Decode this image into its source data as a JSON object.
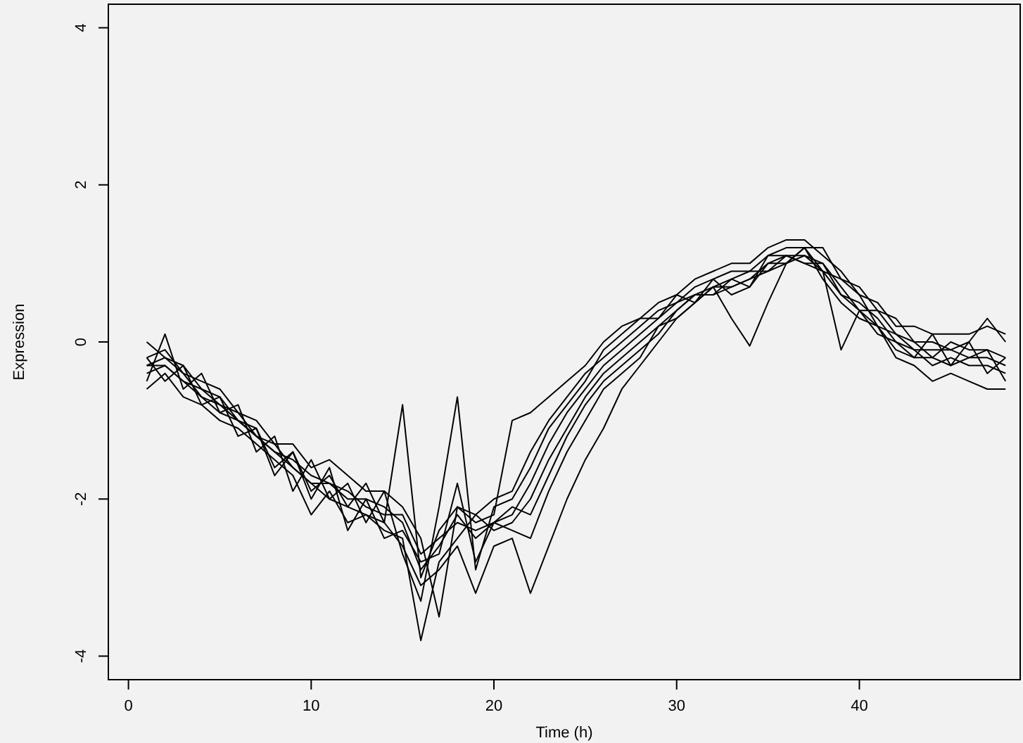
{
  "chart_data": {
    "type": "line",
    "xlabel": "Time (h)",
    "ylabel": "Expression",
    "x": [
      1,
      2,
      3,
      4,
      5,
      6,
      7,
      8,
      9,
      10,
      11,
      12,
      13,
      14,
      15,
      16,
      17,
      18,
      19,
      20,
      21,
      22,
      23,
      24,
      25,
      26,
      27,
      28,
      29,
      30,
      31,
      32,
      33,
      34,
      35,
      36,
      37,
      38,
      39,
      40,
      41,
      42,
      43,
      44,
      45,
      46,
      47,
      48
    ],
    "xlim": [
      -1.1,
      48.8
    ],
    "ylim": [
      -4.3,
      4.3
    ],
    "xticks": [
      0,
      10,
      20,
      30,
      40
    ],
    "yticks": [
      -4,
      -2,
      0,
      2,
      4
    ],
    "grid": false,
    "marker": "none",
    "line_style": "solid",
    "series": [
      {
        "color": "#000000",
        "values": [
          -0.3,
          -0.3,
          -0.5,
          -0.6,
          -0.8,
          -0.9,
          -1.2,
          -1.4,
          -1.5,
          -1.7,
          -1.8,
          -2.0,
          -2.0,
          -2.1,
          -2.3,
          -2.9,
          -2.6,
          -2.2,
          -2.5,
          -2.3,
          -2.2,
          -1.8,
          -1.3,
          -0.9,
          -0.6,
          -0.3,
          -0.1,
          0.1,
          0.3,
          0.5,
          0.6,
          0.7,
          0.7,
          0.8,
          1.0,
          1.1,
          1.1,
          1.0,
          0.6,
          0.5,
          0.3,
          0.0,
          -0.1,
          -0.1,
          -0.1,
          -0.2,
          -0.2,
          -0.3
        ]
      },
      {
        "color": "#000000",
        "values": [
          0.0,
          -0.2,
          -0.3,
          -0.6,
          -0.7,
          -1.0,
          -1.1,
          -1.6,
          -1.4,
          -1.9,
          -1.7,
          -2.1,
          -1.8,
          -2.3,
          -0.8,
          -3.0,
          -2.4,
          -2.1,
          -2.2,
          -2.0,
          -1.9,
          -1.4,
          -1.0,
          -0.7,
          -0.4,
          -0.2,
          0.0,
          0.2,
          0.4,
          0.5,
          0.7,
          0.8,
          0.9,
          0.9,
          1.1,
          1.2,
          1.2,
          0.9,
          0.8,
          0.6,
          0.2,
          0.1,
          0.0,
          -0.2,
          0.0,
          -0.1,
          -0.1,
          -0.2
        ]
      },
      {
        "color": "#000000",
        "values": [
          -0.5,
          0.1,
          -0.6,
          -0.4,
          -0.9,
          -0.8,
          -1.4,
          -1.2,
          -1.9,
          -1.5,
          -2.0,
          -1.8,
          -2.3,
          -1.9,
          -2.7,
          -3.3,
          -2.1,
          -0.7,
          -2.9,
          -2.1,
          -2.0,
          -1.6,
          -1.1,
          -0.8,
          -0.5,
          -0.1,
          0.1,
          0.3,
          0.3,
          0.6,
          0.5,
          0.8,
          0.6,
          0.7,
          1.0,
          1.0,
          1.2,
          0.8,
          0.5,
          0.3,
          0.2,
          -0.1,
          -0.2,
          0.1,
          -0.3,
          0.0,
          -0.4,
          -0.2
        ]
      },
      {
        "color": "#000000",
        "values": [
          -0.6,
          -0.4,
          -0.7,
          -0.8,
          -1.0,
          -1.1,
          -1.3,
          -1.5,
          -1.7,
          -2.2,
          -1.9,
          -2.3,
          -2.2,
          -2.4,
          -2.5,
          -3.8,
          -2.8,
          -2.5,
          -2.2,
          -2.4,
          -2.3,
          -2.0,
          -1.5,
          -1.1,
          -0.7,
          -0.4,
          -0.2,
          0.0,
          0.2,
          0.4,
          0.6,
          0.6,
          0.7,
          0.8,
          0.9,
          1.1,
          1.0,
          1.0,
          0.7,
          0.4,
          0.4,
          0.1,
          -0.1,
          -0.3,
          -0.2,
          -0.3,
          -0.3,
          -0.4
        ]
      },
      {
        "color": "#000000",
        "values": [
          -0.2,
          -0.1,
          -0.4,
          -0.5,
          -0.6,
          -0.9,
          -1.0,
          -1.3,
          -1.3,
          -1.6,
          -1.5,
          -1.7,
          -1.9,
          -1.9,
          -2.1,
          -2.5,
          -3.5,
          -2.1,
          -2.3,
          -2.2,
          -1.0,
          -0.9,
          -0.7,
          -0.5,
          -0.3,
          0.0,
          0.2,
          0.3,
          0.5,
          0.6,
          0.8,
          0.9,
          1.0,
          1.0,
          1.2,
          1.3,
          1.3,
          1.1,
          0.9,
          0.6,
          0.5,
          0.2,
          0.2,
          0.1,
          0.1,
          0.1,
          0.2,
          0.1
        ]
      },
      {
        "color": "#000000",
        "values": [
          -0.4,
          -0.3,
          -0.5,
          -0.7,
          -0.9,
          -1.0,
          -1.2,
          -1.4,
          -1.6,
          -1.8,
          -2.0,
          -2.1,
          -2.2,
          -2.3,
          -2.6,
          -3.1,
          -2.9,
          -2.6,
          -3.2,
          -2.6,
          -2.5,
          -3.2,
          -2.6,
          -2.0,
          -1.5,
          -1.1,
          -0.6,
          -0.3,
          0.0,
          0.3,
          0.5,
          0.7,
          0.3,
          -0.05,
          0.5,
          1.0,
          1.1,
          0.9,
          -0.1,
          0.4,
          0.2,
          -0.2,
          -0.3,
          -0.5,
          -0.4,
          -0.5,
          -0.6,
          -0.6
        ]
      },
      {
        "color": "#000000",
        "values": [
          -0.3,
          -0.2,
          -0.4,
          -0.7,
          -0.8,
          -1.0,
          -1.2,
          -1.3,
          -1.6,
          -1.8,
          -1.8,
          -1.9,
          -2.1,
          -2.2,
          -2.2,
          -2.7,
          -2.5,
          -2.3,
          -2.4,
          -2.3,
          -2.1,
          -2.2,
          -1.7,
          -1.2,
          -0.8,
          -0.5,
          -0.3,
          -0.1,
          0.1,
          0.4,
          0.6,
          0.6,
          0.8,
          0.9,
          0.9,
          1.0,
          1.2,
          1.2,
          0.8,
          0.7,
          0.4,
          0.3,
          0.0,
          0.0,
          -0.1,
          0.0,
          0.3,
          0.0
        ]
      },
      {
        "color": "#000000",
        "values": [
          -0.2,
          -0.5,
          -0.3,
          -0.8,
          -0.7,
          -1.2,
          -1.1,
          -1.7,
          -1.4,
          -2.0,
          -1.6,
          -2.4,
          -2.0,
          -2.5,
          -2.4,
          -2.8,
          -2.7,
          -1.8,
          -2.8,
          -2.3,
          -2.4,
          -2.5,
          -1.9,
          -1.4,
          -1.0,
          -0.6,
          -0.4,
          -0.2,
          0.2,
          0.3,
          0.5,
          0.7,
          0.8,
          0.7,
          1.1,
          1.1,
          1.0,
          0.9,
          0.6,
          0.4,
          0.1,
          0.0,
          -0.2,
          -0.2,
          -0.3,
          -0.2,
          -0.1,
          -0.5
        ]
      }
    ]
  }
}
